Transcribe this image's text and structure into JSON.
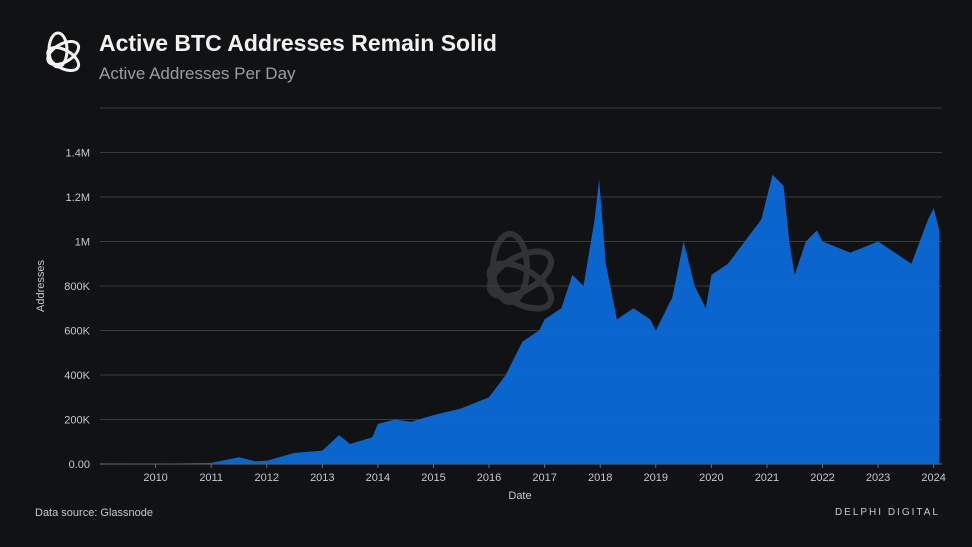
{
  "header": {
    "title": "Active BTC Addresses Remain Solid",
    "subtitle": "Active Addresses Per Day",
    "logo": "delphi-knot-logo"
  },
  "footer": {
    "source": "Data source: Glassnode",
    "brand": "DELPHI DIGITAL"
  },
  "colors": {
    "background": "#111214",
    "area": "#0b6ad6",
    "grid": "#3a3c40",
    "text": "#c8c8c8"
  },
  "chart_data": {
    "type": "area",
    "title": "Active BTC Addresses Remain Solid",
    "subtitle": "Active Addresses Per Day",
    "xlabel": "Date",
    "ylabel": "Addresses",
    "xlim": [
      2009.0,
      2024.15
    ],
    "ylim": [
      0,
      1600000
    ],
    "grid": true,
    "x_ticks": [
      "2010",
      "2011",
      "2012",
      "2013",
      "2014",
      "2015",
      "2016",
      "2017",
      "2018",
      "2019",
      "2020",
      "2021",
      "2022",
      "2023",
      "2024"
    ],
    "y_ticks": [
      {
        "v": 0,
        "label": "0.00"
      },
      {
        "v": 200000,
        "label": "200K"
      },
      {
        "v": 400000,
        "label": "400K"
      },
      {
        "v": 600000,
        "label": "600K"
      },
      {
        "v": 800000,
        "label": "800K"
      },
      {
        "v": 1000000,
        "label": "1M"
      },
      {
        "v": 1200000,
        "label": "1.2M"
      },
      {
        "v": 1400000,
        "label": "1.4M"
      },
      {
        "v": 1600000,
        "label": ""
      }
    ],
    "x": [
      2009.0,
      2010.0,
      2011.0,
      2011.5,
      2011.8,
      2012.0,
      2012.5,
      2013.0,
      2013.3,
      2013.5,
      2013.9,
      2014.0,
      2014.3,
      2014.6,
      2015.0,
      2015.5,
      2016.0,
      2016.3,
      2016.6,
      2016.9,
      2017.0,
      2017.3,
      2017.5,
      2017.7,
      2017.9,
      2017.98,
      2018.1,
      2018.3,
      2018.6,
      2018.9,
      2019.0,
      2019.3,
      2019.5,
      2019.7,
      2019.9,
      2020.0,
      2020.3,
      2020.6,
      2020.9,
      2021.0,
      2021.1,
      2021.3,
      2021.4,
      2021.5,
      2021.7,
      2021.9,
      2022.0,
      2022.5,
      2023.0,
      2023.3,
      2023.6,
      2023.9,
      2024.0,
      2024.1
    ],
    "values": [
      0,
      1000,
      5000,
      30000,
      12000,
      15000,
      50000,
      60000,
      130000,
      90000,
      120000,
      180000,
      200000,
      190000,
      220000,
      250000,
      300000,
      400000,
      550000,
      600000,
      650000,
      700000,
      850000,
      800000,
      1100000,
      1280000,
      900000,
      650000,
      700000,
      650000,
      600000,
      750000,
      1000000,
      800000,
      700000,
      850000,
      900000,
      1000000,
      1100000,
      1200000,
      1300000,
      1250000,
      1000000,
      850000,
      1000000,
      1050000,
      1000000,
      950000,
      1000000,
      950000,
      900000,
      1100000,
      1150000,
      1050000
    ]
  }
}
